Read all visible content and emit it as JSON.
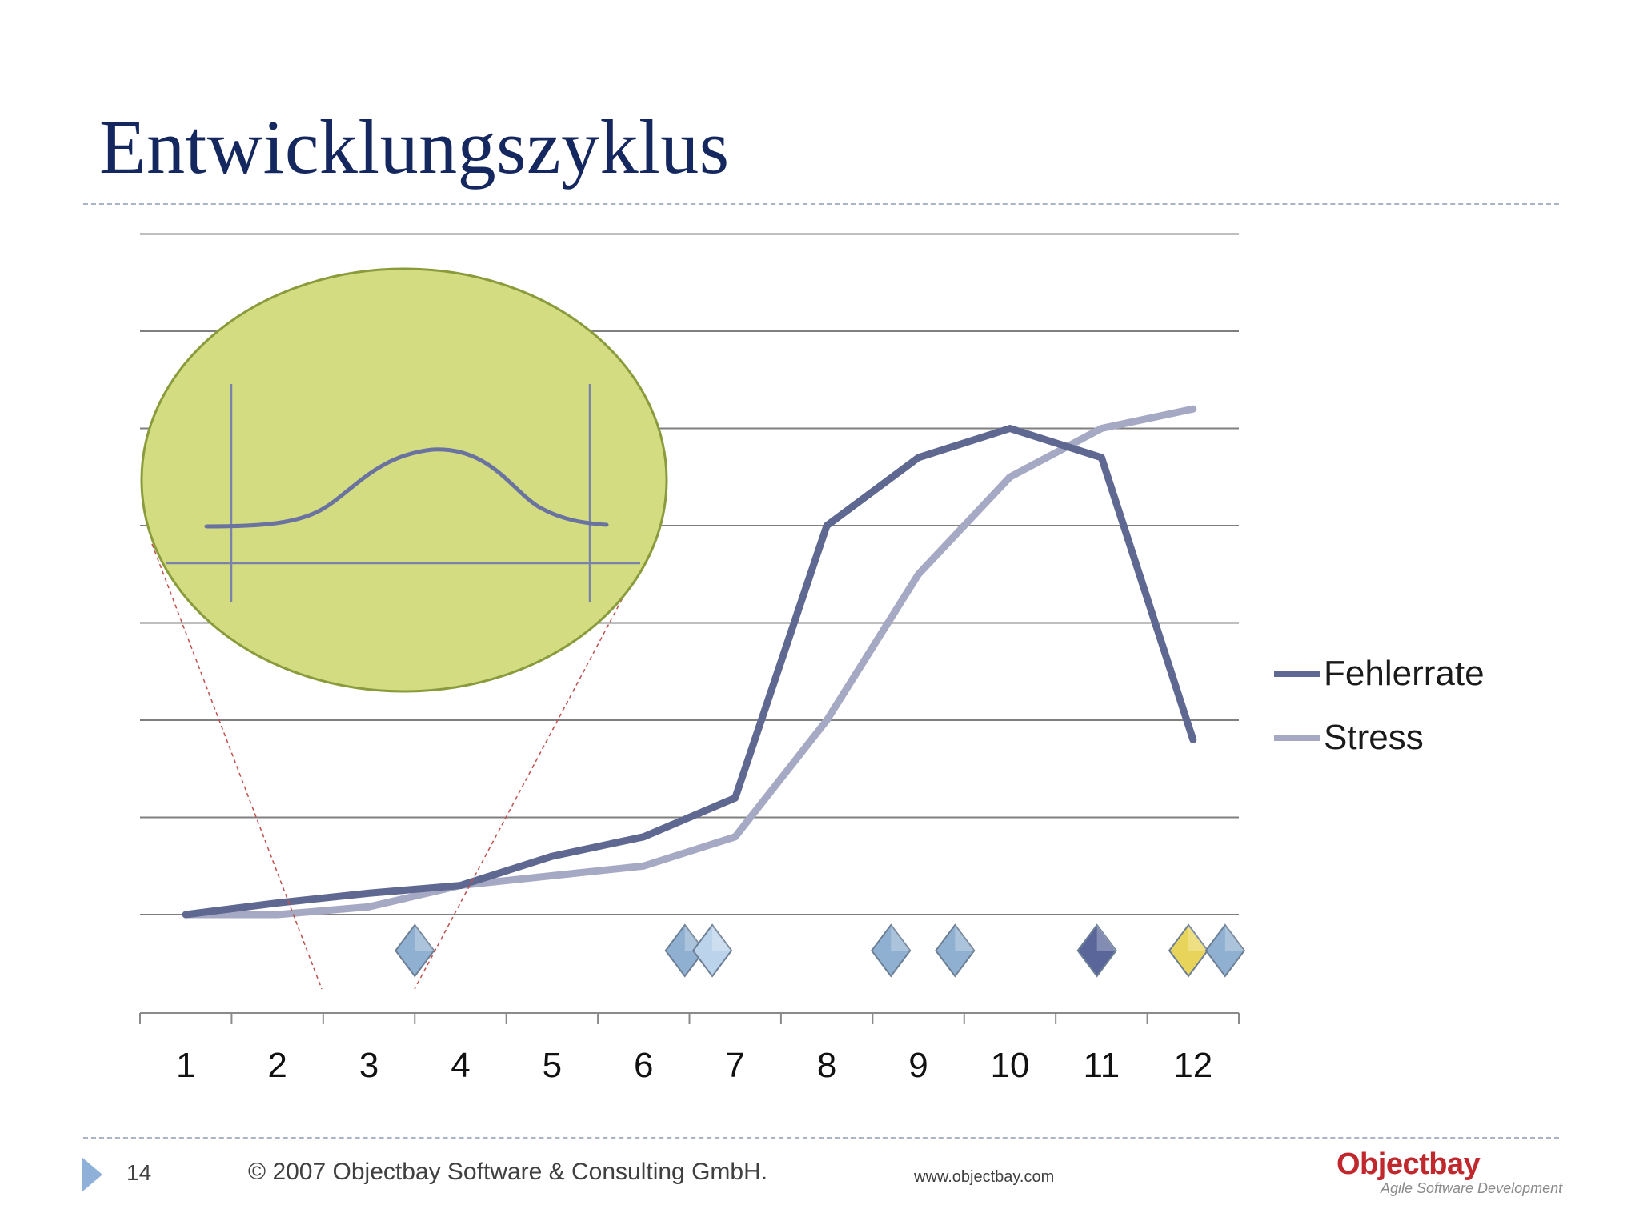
{
  "slide": {
    "title": "Entwicklungszyklus",
    "footer": {
      "page_number": "14",
      "copyright": "© 2007  Objectbay Software & Consulting GmbH.",
      "website": "www.objectbay.com",
      "logo_name": "Objectbay",
      "logo_tagline": "Agile Software Development"
    }
  },
  "colors": {
    "title": "#14275e",
    "fehlerrate": "#5f6890",
    "stress": "#a6a9c4",
    "grid": "#7f7f7f",
    "inset_fill": "#d4dc82",
    "inset_border": "#8a9b3c",
    "zoom_lines": "#c0504d"
  },
  "chart_data": {
    "type": "line",
    "title": "",
    "xlabel": "",
    "ylabel": "",
    "categories": [
      "1",
      "2",
      "3",
      "4",
      "5",
      "6",
      "7",
      "8",
      "9",
      "10",
      "11",
      "12"
    ],
    "ylim": [
      0,
      7
    ],
    "y_ticks_shown": false,
    "grid": "horizontal",
    "legend": "right",
    "series": [
      {
        "name": "Fehlerrate",
        "color": "#5f6890",
        "values": [
          0,
          0.12,
          0.22,
          0.3,
          0.6,
          0.8,
          1.2,
          4.0,
          4.7,
          5.0,
          4.7,
          1.8
        ]
      },
      {
        "name": "Stress",
        "color": "#a6a9c4",
        "values": [
          0,
          0.0,
          0.08,
          0.3,
          0.4,
          0.5,
          0.8,
          2.0,
          3.5,
          4.5,
          5.0,
          5.2
        ]
      }
    ],
    "milestones": [
      {
        "x": 3.5,
        "color": "#8fb0d0"
      },
      {
        "x": 6.45,
        "color": "#8fb0d0"
      },
      {
        "x": 6.75,
        "color": "#bcd3ec"
      },
      {
        "x": 8.7,
        "color": "#8fb0d0"
      },
      {
        "x": 9.4,
        "color": "#8fb0d0"
      },
      {
        "x": 10.95,
        "color": "#5a6699"
      },
      {
        "x": 11.95,
        "color": "#e8d45a"
      },
      {
        "x": 12.35,
        "color": "#8fb0d0"
      }
    ]
  }
}
